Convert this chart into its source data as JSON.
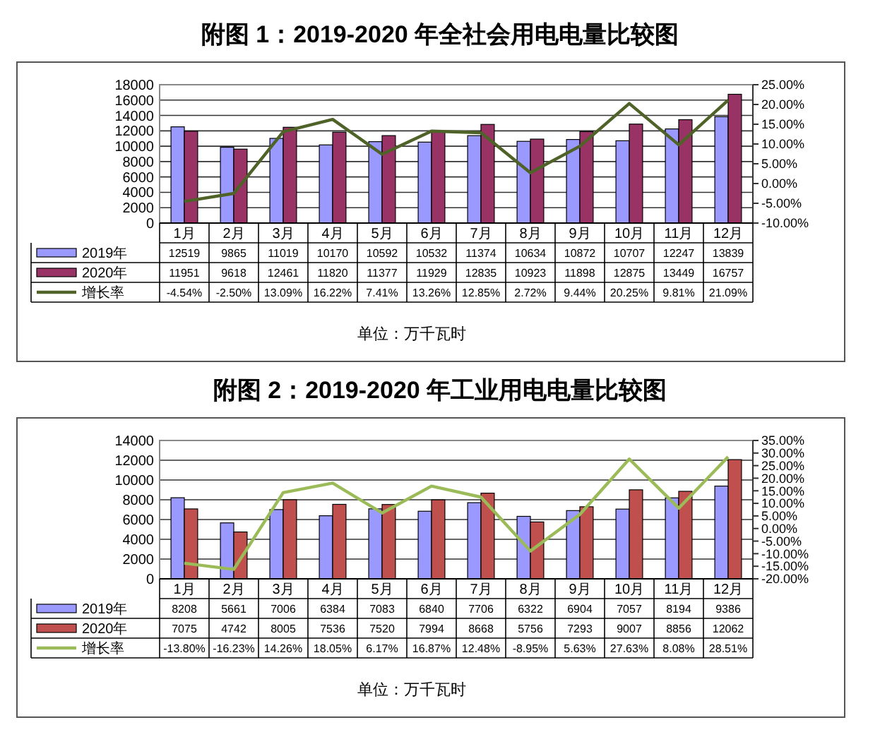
{
  "chart_data": [
    {
      "type": "bar",
      "title": "附图 1：2019-2020 年全社会用电电量比较图",
      "categories": [
        "1月",
        "2月",
        "3月",
        "4月",
        "5月",
        "6月",
        "7月",
        "8月",
        "9月",
        "10月",
        "11月",
        "12月"
      ],
      "series": [
        {
          "name": "2019年",
          "color": "#9999ff",
          "values": [
            12519,
            9865,
            11019,
            10170,
            10592,
            10532,
            11374,
            10634,
            10872,
            10707,
            12247,
            13839
          ],
          "value_labels": [
            "12519",
            "9865",
            "11019",
            "10170",
            "10592",
            "10532",
            "11374",
            "10634",
            "10872",
            "10707",
            "12247",
            "13839"
          ]
        },
        {
          "name": "2020年",
          "color": "#993366",
          "values": [
            11951,
            9618,
            12461,
            11820,
            11377,
            11929,
            12835,
            10923,
            11898,
            12875,
            13449,
            16757
          ],
          "value_labels": [
            "11951",
            "9618",
            "12461",
            "11820",
            "11377",
            "11929",
            "12835",
            "10923",
            "11898",
            "12875",
            "13449",
            "16757"
          ]
        },
        {
          "name": "增长率",
          "type": "line",
          "axis": "y2",
          "color": "#4f6228",
          "values": [
            -4.54,
            -2.5,
            13.09,
            16.22,
            7.41,
            13.26,
            12.85,
            2.72,
            9.44,
            20.25,
            9.81,
            21.09
          ],
          "value_labels": [
            "-4.54%",
            "-2.50%",
            "13.09%",
            "16.22%",
            "7.41%",
            "13.26%",
            "12.85%",
            "2.72%",
            "9.44%",
            "20.25%",
            "9.81%",
            "21.09%"
          ]
        }
      ],
      "ylim": [
        0,
        18000
      ],
      "yticks": [
        0,
        2000,
        4000,
        6000,
        8000,
        10000,
        12000,
        14000,
        16000,
        18000
      ],
      "y2lim": [
        -10,
        25
      ],
      "y2ticks": [
        {
          "value": -10,
          "label": "-10.00%"
        },
        {
          "value": -5,
          "label": "-5.00%"
        },
        {
          "value": 0,
          "label": "0.00%"
        },
        {
          "value": 5,
          "label": "5.00%"
        },
        {
          "value": 10,
          "label": "10.00%"
        },
        {
          "value": 15,
          "label": "15.00%"
        },
        {
          "value": 20,
          "label": "20.00%"
        },
        {
          "value": 25,
          "label": "25.00%"
        }
      ],
      "grid": "y",
      "legend": "bottom",
      "annotations": [
        "单位：万千瓦时"
      ]
    },
    {
      "type": "bar",
      "title": "附图 2：2019-2020 年工业用电电量比较图",
      "categories": [
        "1月",
        "2月",
        "3月",
        "4月",
        "5月",
        "6月",
        "7月",
        "8月",
        "9月",
        "10月",
        "11月",
        "12月"
      ],
      "series": [
        {
          "name": "2019年",
          "color": "#9999ff",
          "values": [
            8208,
            5661,
            7006,
            6384,
            7083,
            6840,
            7706,
            6322,
            6904,
            7057,
            8194,
            9386
          ],
          "value_labels": [
            "8208",
            "5661",
            "7006",
            "6384",
            "7083",
            "6840",
            "7706",
            "6322",
            "6904",
            "7057",
            "8194",
            "9386"
          ]
        },
        {
          "name": "2020年",
          "color": "#c0504d",
          "values": [
            7075,
            4742,
            8005,
            7536,
            7520,
            7994,
            8668,
            5756,
            7293,
            9007,
            8856,
            12062
          ],
          "value_labels": [
            "7075",
            "4742",
            "8005",
            "7536",
            "7520",
            "7994",
            "8668",
            "5756",
            "7293",
            "9007",
            "8856",
            "12062"
          ]
        },
        {
          "name": "增长率",
          "type": "line",
          "axis": "y2",
          "color": "#9bbb59",
          "values": [
            -13.8,
            -16.23,
            14.26,
            18.05,
            6.17,
            16.87,
            12.48,
            -8.95,
            5.63,
            27.63,
            8.08,
            28.51
          ],
          "value_labels": [
            "-13.80%",
            "-16.23%",
            "14.26%",
            "18.05%",
            "6.17%",
            "16.87%",
            "12.48%",
            "-8.95%",
            "5.63%",
            "27.63%",
            "8.08%",
            "28.51%"
          ]
        }
      ],
      "ylim": [
        0,
        14000
      ],
      "yticks": [
        0,
        2000,
        4000,
        6000,
        8000,
        10000,
        12000,
        14000
      ],
      "y2lim": [
        -20,
        35
      ],
      "y2ticks": [
        {
          "value": -20,
          "label": "-20.00%"
        },
        {
          "value": -15,
          "label": "-15.00%"
        },
        {
          "value": -10,
          "label": "-10.00%"
        },
        {
          "value": -5,
          "label": "-5.00%"
        },
        {
          "value": 0,
          "label": "0.00%"
        },
        {
          "value": 5,
          "label": "5.00%"
        },
        {
          "value": 10,
          "label": "10.00%"
        },
        {
          "value": 15,
          "label": "15.00%"
        },
        {
          "value": 20,
          "label": "20.00%"
        },
        {
          "value": 25,
          "label": "25.00%"
        },
        {
          "value": 30,
          "label": "30.00%"
        },
        {
          "value": 35,
          "label": "35.00%"
        }
      ],
      "grid": "y",
      "legend": "bottom",
      "annotations": [
        "单位：万千瓦时"
      ]
    }
  ]
}
